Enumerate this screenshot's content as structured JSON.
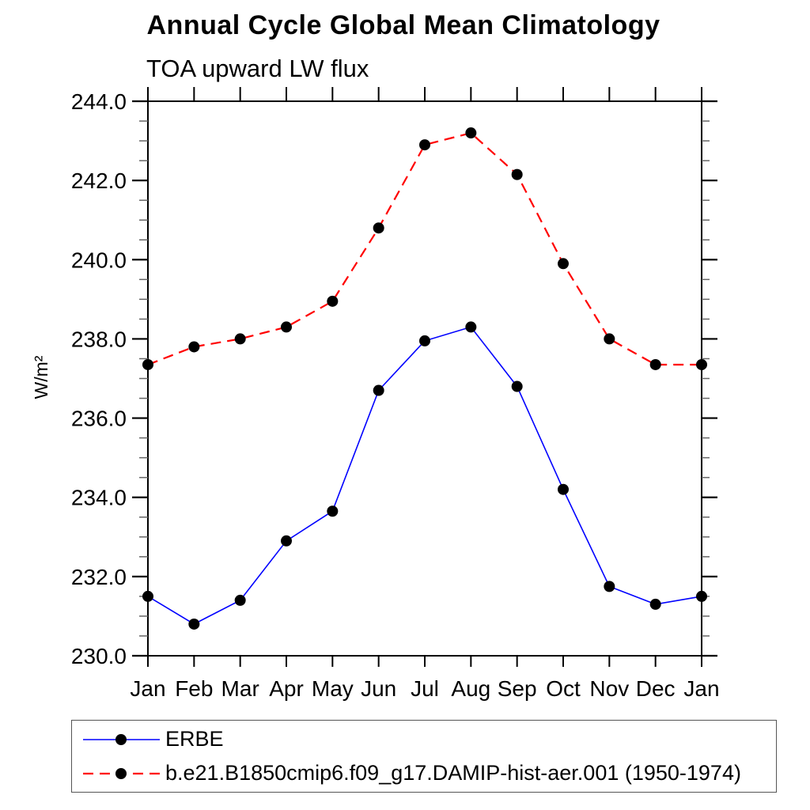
{
  "chart_data": {
    "type": "line",
    "title": "Annual Cycle Global Mean Climatology",
    "subtitle": "TOA upward LW flux",
    "ylabel": "W/m²",
    "xlabel": "",
    "x_categories": [
      "Jan",
      "Feb",
      "Mar",
      "Apr",
      "May",
      "Jun",
      "Jul",
      "Aug",
      "Sep",
      "Oct",
      "Nov",
      "Dec",
      "Jan"
    ],
    "ylim": [
      230.0,
      244.0
    ],
    "ytick_major_step": 2.0,
    "ytick_minor_step": 0.5,
    "ytick_label_format": "one-decimal",
    "grid": false,
    "legend_position": "bottom-left-box",
    "axis_color": "#000000",
    "marker_shape": "filled-circle",
    "series": [
      {
        "name": "ERBE",
        "color": "#0000ff",
        "line_style": "solid",
        "marker_color": "#000000",
        "values": [
          231.5,
          230.8,
          231.4,
          232.9,
          233.65,
          236.7,
          237.95,
          238.3,
          236.8,
          234.2,
          231.75,
          231.3,
          231.5
        ]
      },
      {
        "name": "b.e21.B1850cmip6.f09_g17.DAMIP-hist-aer.001 (1950-1974)",
        "color": "#ff0000",
        "line_style": "dashed",
        "marker_color": "#000000",
        "values": [
          237.35,
          237.8,
          238.0,
          238.3,
          238.95,
          240.8,
          242.9,
          243.2,
          242.15,
          239.9,
          238.0,
          237.35,
          237.35
        ]
      }
    ]
  }
}
